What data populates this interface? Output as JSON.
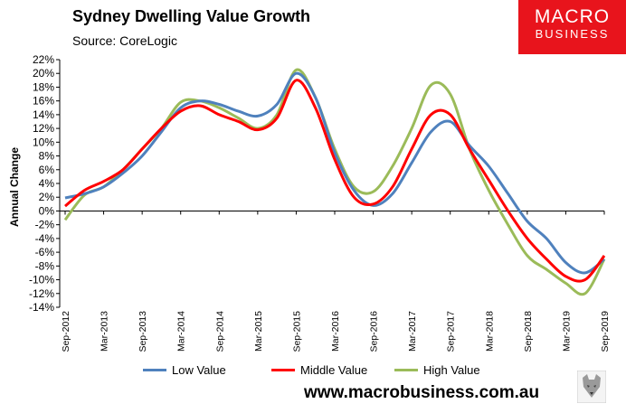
{
  "title": "Sydney Dwelling Value Growth",
  "source": "Source: CoreLogic",
  "logo": {
    "line1": "MACRO",
    "line2": "BUSINESS"
  },
  "url": "www.macrobusiness.com.au",
  "chart_data": {
    "type": "line",
    "title": "Sydney Dwelling Value Growth",
    "ylabel": "Annual Change",
    "xlabel": "",
    "ylim": [
      -14,
      22
    ],
    "ytick_step": 2,
    "grid": false,
    "legend_position": "bottom",
    "x": [
      "Sep-2012",
      "Dec-2012",
      "Mar-2013",
      "Jun-2013",
      "Sep-2013",
      "Dec-2013",
      "Mar-2014",
      "Jun-2014",
      "Sep-2014",
      "Dec-2014",
      "Mar-2015",
      "Jun-2015",
      "Sep-2015",
      "Dec-2015",
      "Mar-2016",
      "Jun-2016",
      "Sep-2016",
      "Dec-2016",
      "Mar-2017",
      "Jun-2017",
      "Sep-2017",
      "Dec-2017",
      "Mar-2018",
      "Jun-2018",
      "Sep-2018",
      "Dec-2018",
      "Mar-2019",
      "Jun-2019",
      "Sep-2019"
    ],
    "x_tick_labels": [
      "Sep-2012",
      "Mar-2013",
      "Sep-2013",
      "Mar-2014",
      "Sep-2014",
      "Mar-2015",
      "Sep-2015",
      "Mar-2016",
      "Sep-2016",
      "Mar-2017",
      "Sep-2017",
      "Mar-2018",
      "Sep-2018",
      "Mar-2019",
      "Sep-2019"
    ],
    "series": [
      {
        "name": "Low Value",
        "color": "#4f81bd",
        "values": [
          1.9,
          2.5,
          3.5,
          5.5,
          8.0,
          11.5,
          15.0,
          16.0,
          15.5,
          14.5,
          13.8,
          15.5,
          20.0,
          16.5,
          8.5,
          3.0,
          0.8,
          2.5,
          7.0,
          11.5,
          13.0,
          9.5,
          6.5,
          2.5,
          -1.5,
          -4.0,
          -7.5,
          -9.0,
          -7.0
        ]
      },
      {
        "name": "Middle Value",
        "color": "#ff0000",
        "values": [
          0.7,
          3.0,
          4.3,
          6.0,
          9.0,
          12.0,
          14.5,
          15.3,
          14.0,
          13.0,
          11.8,
          13.5,
          19.0,
          15.0,
          7.5,
          2.0,
          1.0,
          3.5,
          9.0,
          14.0,
          14.0,
          9.0,
          4.5,
          0.0,
          -4.0,
          -7.0,
          -9.5,
          -10.0,
          -6.5
        ]
      },
      {
        "name": "High Value",
        "color": "#9bbb59",
        "values": [
          -1.3,
          2.3,
          3.5,
          6.0,
          9.0,
          12.0,
          15.8,
          16.0,
          15.0,
          13.5,
          12.0,
          14.0,
          20.5,
          16.5,
          9.0,
          3.5,
          2.8,
          6.5,
          12.0,
          18.3,
          17.0,
          9.0,
          3.0,
          -2.0,
          -6.5,
          -8.5,
          -10.5,
          -12.0,
          -7.0
        ]
      }
    ]
  }
}
